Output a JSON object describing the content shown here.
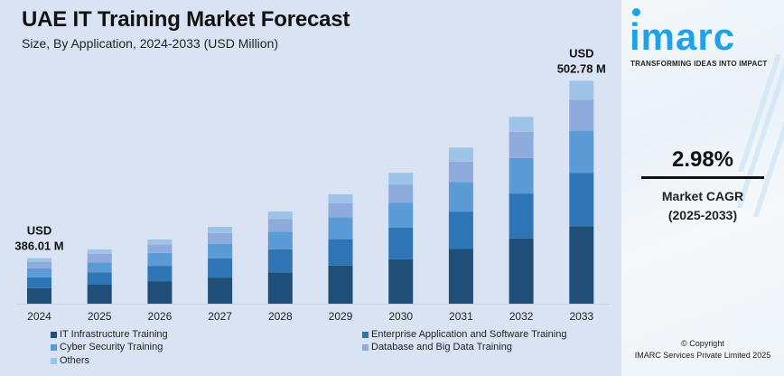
{
  "header": {
    "title": "UAE IT Training Market Forecast",
    "subtitle": "Size, By Application, 2024-2033 (USD Million)"
  },
  "chart_data": {
    "type": "bar",
    "stacked": true,
    "title": "UAE IT Training Market Forecast",
    "subtitle": "Size, By Application, 2024-2033 (USD Million)",
    "xlabel": "",
    "ylabel": "USD Million",
    "ylim": [
      356,
      503
    ],
    "grid": false,
    "legend_position": "bottom",
    "categories": [
      "2024",
      "2025",
      "2026",
      "2027",
      "2028",
      "2029",
      "2030",
      "2031",
      "2032",
      "2033"
    ],
    "totals": [
      386.01,
      391.7,
      398.3,
      406.6,
      416.7,
      428.0,
      442.2,
      458.8,
      479.0,
      502.78
    ],
    "series": [
      {
        "name": "IT Infrastructure Training",
        "color": "#1f4e79",
        "share": [
          0.34,
          0.35,
          0.35,
          0.34,
          0.34,
          0.35,
          0.34,
          0.35,
          0.35,
          0.348
        ]
      },
      {
        "name": "Enterprise Application and Software Training",
        "color": "#2e75b6",
        "share": [
          0.24,
          0.23,
          0.24,
          0.25,
          0.25,
          0.24,
          0.24,
          0.24,
          0.24,
          0.239
        ]
      },
      {
        "name": "Cyber Security Training",
        "color": "#5b9bd5",
        "share": [
          0.2,
          0.18,
          0.2,
          0.19,
          0.19,
          0.2,
          0.19,
          0.19,
          0.19,
          0.19
        ]
      },
      {
        "name": "Database and Big Data Training",
        "color": "#8faadc",
        "share": [
          0.14,
          0.16,
          0.13,
          0.14,
          0.14,
          0.13,
          0.14,
          0.13,
          0.14,
          0.138
        ]
      },
      {
        "name": "Others",
        "color": "#9dc3e6",
        "share": [
          0.08,
          0.08,
          0.08,
          0.08,
          0.08,
          0.08,
          0.09,
          0.09,
          0.08,
          0.085
        ]
      }
    ],
    "annotations": [
      {
        "category": "2024",
        "line1": "USD",
        "line2": "386.01 M"
      },
      {
        "category": "2033",
        "line1": "USD",
        "line2": "502.78 M"
      }
    ]
  },
  "legend": [
    {
      "label": "IT Infrastructure Training",
      "color": "#1f4e79"
    },
    {
      "label": "Enterprise Application and Software Training",
      "color": "#2e75b6"
    },
    {
      "label": "Cyber Security Training",
      "color": "#5b9bd5"
    },
    {
      "label": "Database and Big Data Training",
      "color": "#8faadc"
    },
    {
      "label": "Others",
      "color": "#9dc3e6"
    }
  ],
  "sidebar": {
    "logo": "imarc",
    "tagline": "TRANSFORMING IDEAS INTO IMPACT",
    "cagr_value": "2.98%",
    "cagr_label": "Market CAGR",
    "cagr_period": "(2025-2033)",
    "copyright_line1": "© Copyright",
    "copyright_line2": "IMARC Services Private Limited 2025",
    "brand_color": "#1fa3e8"
  }
}
